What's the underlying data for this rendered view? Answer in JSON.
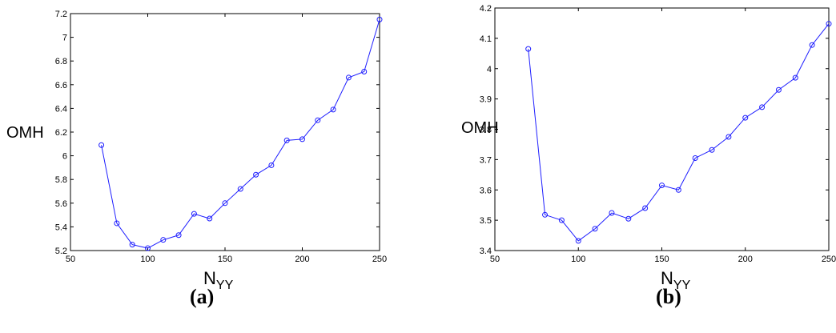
{
  "chart_data": [
    {
      "type": "line",
      "caption": "(a)",
      "ylabel": "OMH",
      "xlabel_main": "N",
      "xlabel_sub": "YY",
      "xlim": [
        50,
        250
      ],
      "ylim": [
        5.2,
        7.2
      ],
      "xticks": [
        "50",
        "100",
        "150",
        "200",
        "250"
      ],
      "yticks": [
        "5.2",
        "5.4",
        "5.6",
        "5.8",
        "6",
        "6.2",
        "6.4",
        "6.6",
        "6.8",
        "7",
        "7.2"
      ],
      "color": "#1f1fff",
      "marker": "circle",
      "grid": false,
      "x": [
        70,
        80,
        90,
        100,
        110,
        120,
        130,
        140,
        150,
        160,
        170,
        180,
        190,
        200,
        210,
        220,
        230,
        240,
        250
      ],
      "values": [
        6.09,
        5.43,
        5.25,
        5.22,
        5.29,
        5.33,
        5.51,
        5.47,
        5.6,
        5.72,
        5.84,
        5.92,
        6.13,
        6.14,
        6.3,
        6.39,
        6.66,
        6.71,
        7.15
      ]
    },
    {
      "type": "line",
      "caption": "(b)",
      "ylabel": "OMH",
      "xlabel_main": "N",
      "xlabel_sub": "YY",
      "xlim": [
        50,
        250
      ],
      "ylim": [
        3.4,
        4.2
      ],
      "xticks": [
        "50",
        "100",
        "150",
        "200",
        "250"
      ],
      "yticks": [
        "3.4",
        "3.5",
        "3.6",
        "3.7",
        "3.8",
        "3.9",
        "4",
        "4.1",
        "4.2"
      ],
      "color": "#1f1fff",
      "marker": "circle",
      "grid": false,
      "x": [
        70,
        80,
        90,
        100,
        110,
        120,
        130,
        140,
        150,
        160,
        170,
        180,
        190,
        200,
        210,
        220,
        230,
        240,
        250
      ],
      "values": [
        4.065,
        3.518,
        3.5,
        3.432,
        3.472,
        3.524,
        3.505,
        3.54,
        3.615,
        3.6,
        3.705,
        3.732,
        3.775,
        3.838,
        3.873,
        3.93,
        3.97,
        4.078,
        4.148
      ]
    }
  ]
}
